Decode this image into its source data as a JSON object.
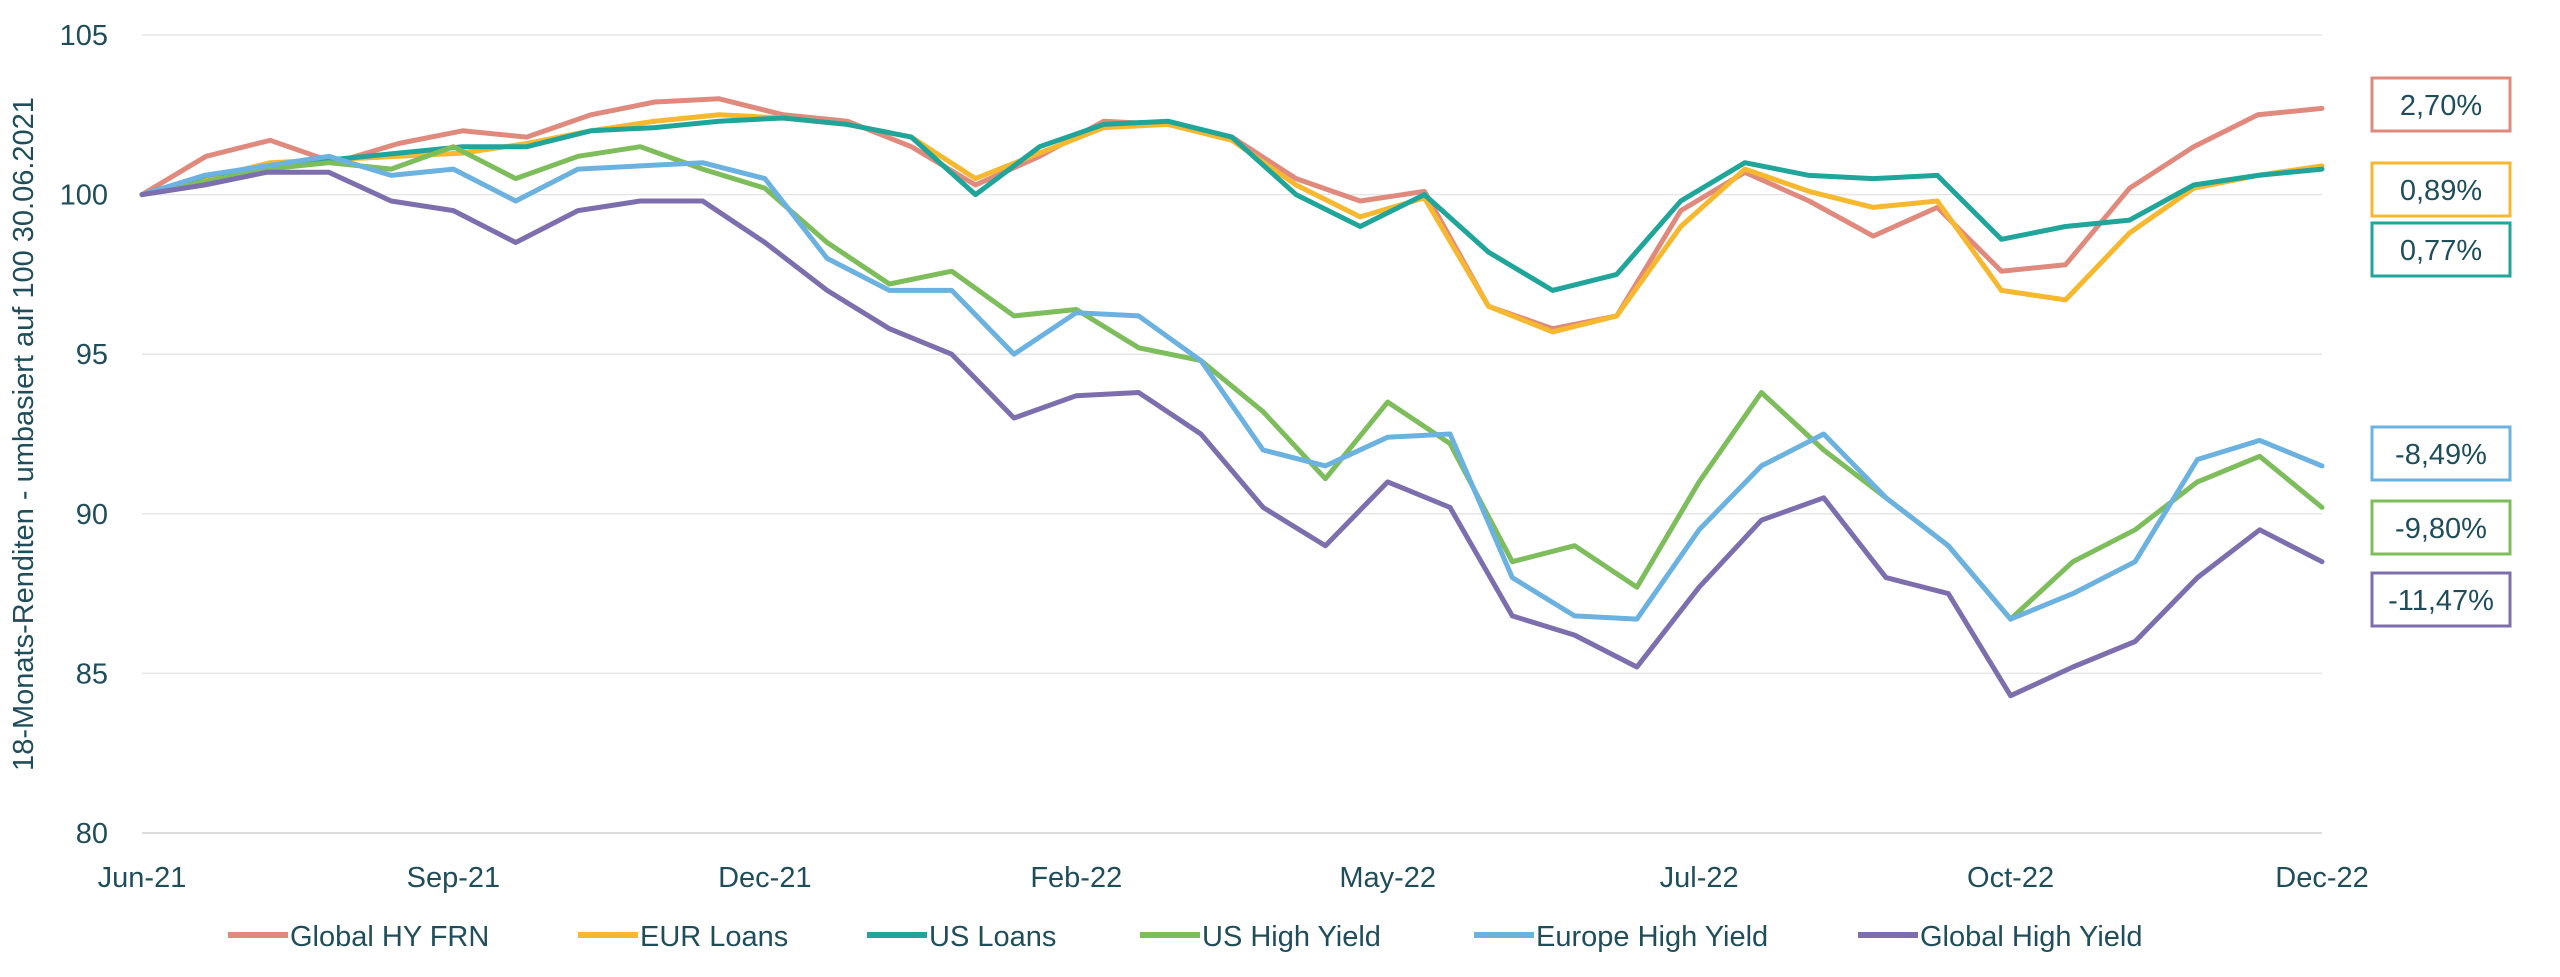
{
  "chart_data": {
    "type": "line",
    "title": "",
    "xlabel": "",
    "ylabel": "18-Monats-Renditen - umbasiert auf 100 30.06.2021",
    "ylim": [
      80,
      105
    ],
    "yticks": [
      "80",
      "85",
      "90",
      "95",
      "100",
      "105"
    ],
    "xticks": [
      "Jun-21",
      "Sep-21",
      "Dec-21",
      "Feb-22",
      "May-22",
      "Jul-22",
      "Oct-22",
      "Dec-22"
    ],
    "grid": "horizontal",
    "legend_position": "bottom",
    "series": [
      {
        "name": "Global HY FRN",
        "color": "#e08a7e",
        "end_label": "2,70%",
        "values": [
          100.0,
          101.2,
          101.7,
          101.0,
          101.6,
          102.0,
          101.8,
          102.5,
          102.9,
          103.0,
          102.5,
          102.3,
          101.5,
          100.3,
          101.2,
          102.3,
          102.2,
          101.8,
          100.5,
          99.8,
          100.1,
          96.5,
          95.8,
          96.2,
          99.5,
          100.7,
          99.8,
          98.7,
          99.6,
          97.6,
          97.8,
          100.2,
          101.5,
          102.5,
          102.7
        ]
      },
      {
        "name": "EUR Loans",
        "color": "#f5b82e",
        "end_label": "0,89%",
        "values": [
          100.0,
          100.5,
          101.0,
          101.1,
          101.2,
          101.3,
          101.6,
          102.0,
          102.3,
          102.5,
          102.4,
          102.2,
          101.8,
          100.5,
          101.3,
          102.1,
          102.2,
          101.7,
          100.3,
          99.3,
          99.9,
          96.5,
          95.7,
          96.2,
          99.0,
          100.8,
          100.1,
          99.6,
          99.8,
          97.0,
          96.7,
          98.8,
          100.2,
          100.6,
          100.9
        ]
      },
      {
        "name": "US Loans",
        "color": "#20a59a",
        "end_label": "0,77%",
        "values": [
          100.0,
          100.6,
          100.9,
          101.1,
          101.3,
          101.5,
          101.5,
          102.0,
          102.1,
          102.3,
          102.4,
          102.2,
          101.8,
          100.0,
          101.5,
          102.2,
          102.3,
          101.8,
          100.0,
          99.0,
          100.0,
          98.2,
          97.0,
          97.5,
          99.8,
          101.0,
          100.6,
          100.5,
          100.6,
          98.6,
          99.0,
          99.2,
          100.3,
          100.6,
          100.8
        ]
      },
      {
        "name": "US High Yield",
        "color": "#7ebd5b",
        "end_label": "-9,80%",
        "values": [
          100.0,
          100.4,
          100.8,
          101.0,
          100.8,
          101.5,
          100.5,
          101.2,
          101.5,
          100.8,
          100.2,
          98.5,
          97.2,
          97.6,
          96.2,
          96.4,
          95.2,
          94.8,
          93.2,
          91.1,
          93.5,
          92.2,
          88.5,
          89.0,
          87.7,
          91.0,
          93.8,
          92.0,
          90.5,
          89.0,
          86.7,
          88.5,
          89.5,
          91.0,
          91.8,
          90.2
        ]
      },
      {
        "name": "Europe High Yield",
        "color": "#6cb2e0",
        "end_label": "-8,49%",
        "values": [
          100.0,
          100.6,
          100.9,
          101.2,
          100.6,
          100.8,
          99.8,
          100.8,
          100.9,
          101.0,
          100.5,
          98.0,
          97.0,
          97.0,
          95.0,
          96.3,
          96.2,
          94.8,
          92.0,
          91.5,
          92.4,
          92.5,
          88.0,
          86.8,
          86.7,
          89.5,
          91.5,
          92.5,
          90.5,
          89.0,
          86.7,
          87.5,
          88.5,
          91.7,
          92.3,
          91.5
        ]
      },
      {
        "name": "Global High Yield",
        "color": "#7d6fae",
        "end_label": "-11,47%",
        "values": [
          100.0,
          100.3,
          100.7,
          100.7,
          99.8,
          99.5,
          98.5,
          99.5,
          99.8,
          99.8,
          98.5,
          97.0,
          95.8,
          95.0,
          93.0,
          93.7,
          93.8,
          92.5,
          90.2,
          89.0,
          91.0,
          90.2,
          86.8,
          86.2,
          85.2,
          87.7,
          89.8,
          90.5,
          88.0,
          87.5,
          84.3,
          85.2,
          86.0,
          88.0,
          89.5,
          88.5
        ]
      }
    ]
  }
}
